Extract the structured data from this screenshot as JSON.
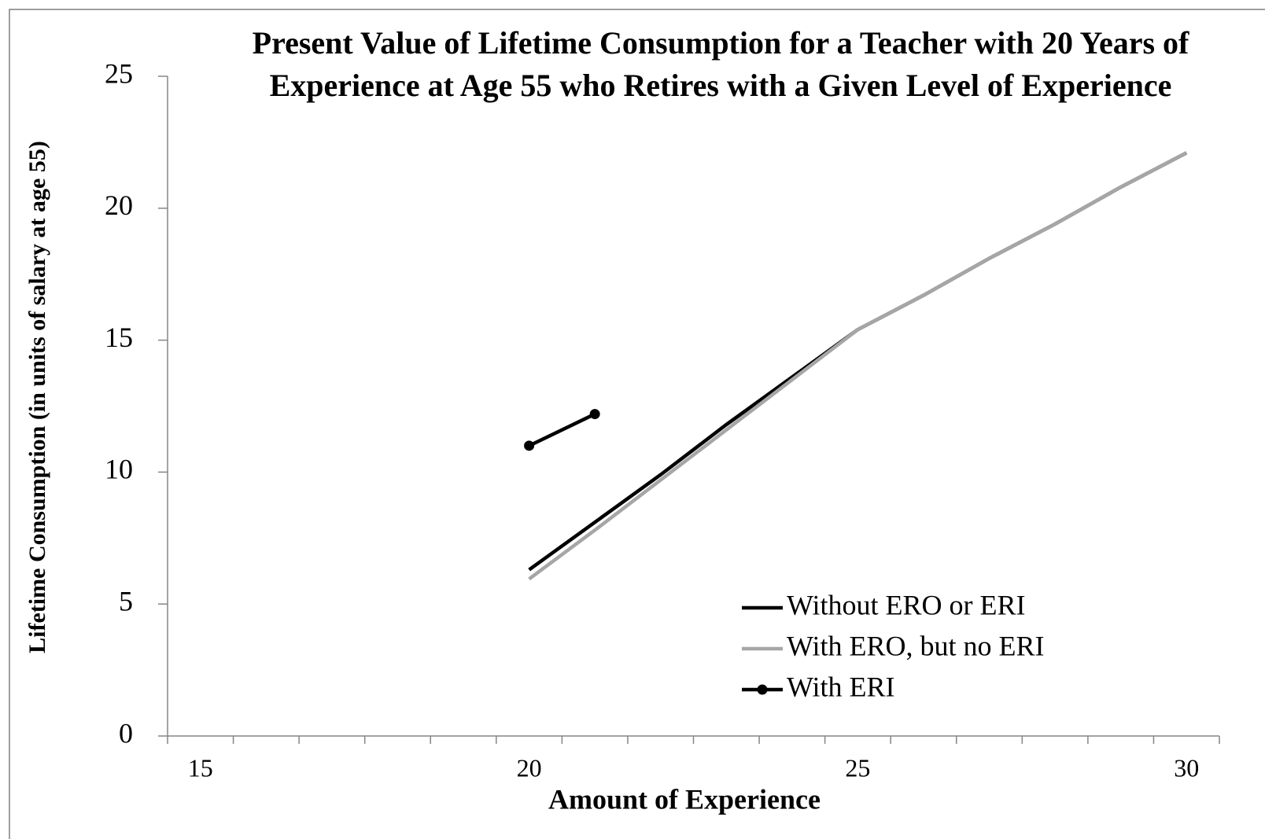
{
  "chart_data": {
    "type": "line",
    "title": "Present Value of Lifetime Consumption for a Teacher with 20 Years of Experience at Age 55 who Retires with a Given Level of Experience",
    "x_label": "Amount of Experience",
    "y_label": "Lifetime Consumption (in units of salary at age 55)",
    "categories": [
      "15",
      null,
      null,
      null,
      null,
      "20",
      null,
      null,
      null,
      null,
      "25",
      null,
      null,
      null,
      null,
      "30"
    ],
    "ylim": [
      0,
      25
    ],
    "yticks": [
      0,
      5,
      10,
      15,
      20,
      25
    ],
    "series": [
      {
        "name": "Without ERO or ERI",
        "color": "#000000",
        "marker": "none",
        "values": [
          null,
          null,
          null,
          null,
          null,
          6.3,
          8.1,
          9.9,
          11.8,
          13.6,
          15.4,
          16.7,
          18.1,
          19.4,
          20.8,
          22.1
        ]
      },
      {
        "name": "With ERO, but no ERI",
        "color": "#a6a6a6",
        "marker": "none",
        "values": [
          null,
          null,
          null,
          null,
          null,
          5.95,
          7.8,
          9.7,
          11.6,
          13.5,
          15.4,
          16.7,
          18.1,
          19.4,
          20.8,
          22.1
        ]
      },
      {
        "name": "With ERI",
        "color": "#000000",
        "marker": "circle",
        "values": [
          null,
          null,
          null,
          null,
          null,
          11.0,
          12.2,
          null,
          null,
          null,
          null,
          null,
          null,
          null,
          null,
          null
        ]
      }
    ],
    "legend": "bottom-right"
  }
}
